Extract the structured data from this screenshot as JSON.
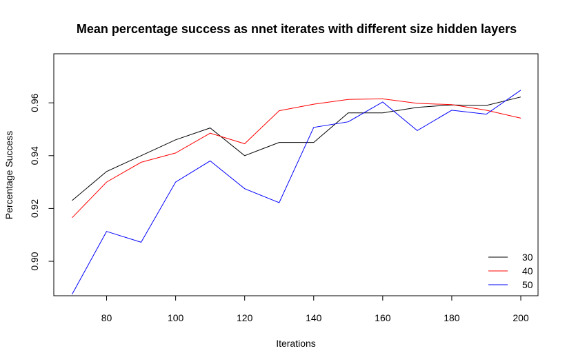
{
  "chart_data": {
    "type": "line",
    "title": "Mean percentage success as nnet iterates with different size hidden layers",
    "xlabel": "Iterations",
    "ylabel": "Percentage Success",
    "xlim": [
      70,
      200
    ],
    "ylim": [
      0.888,
      0.968
    ],
    "xticks": [
      "80",
      "100",
      "120",
      "140",
      "160",
      "180",
      "200"
    ],
    "yticks": [
      "0.90",
      "0.92",
      "0.94",
      "0.96"
    ],
    "grid": false,
    "legend_position": "bottom-right",
    "x": [
      70,
      80,
      90,
      100,
      110,
      120,
      130,
      140,
      150,
      160,
      170,
      180,
      190,
      200
    ],
    "series": [
      {
        "name": "30",
        "color": "#000000",
        "values": [
          0.923,
          0.934,
          0.94,
          0.946,
          0.9505,
          0.94,
          0.945,
          0.945,
          0.9562,
          0.9562,
          0.9583,
          0.9592,
          0.959,
          0.9622
        ]
      },
      {
        "name": "40",
        "color": "#ff0000",
        "values": [
          0.9165,
          0.93,
          0.9375,
          0.941,
          0.9485,
          0.9445,
          0.957,
          0.9595,
          0.9613,
          0.9615,
          0.9598,
          0.9593,
          0.9572,
          0.9542
        ]
      },
      {
        "name": "50",
        "color": "#0000ff",
        "values": [
          0.8875,
          0.9113,
          0.9072,
          0.93,
          0.938,
          0.9275,
          0.9222,
          0.9507,
          0.9528,
          0.9603,
          0.9495,
          0.9572,
          0.9557,
          0.9648
        ]
      }
    ]
  }
}
